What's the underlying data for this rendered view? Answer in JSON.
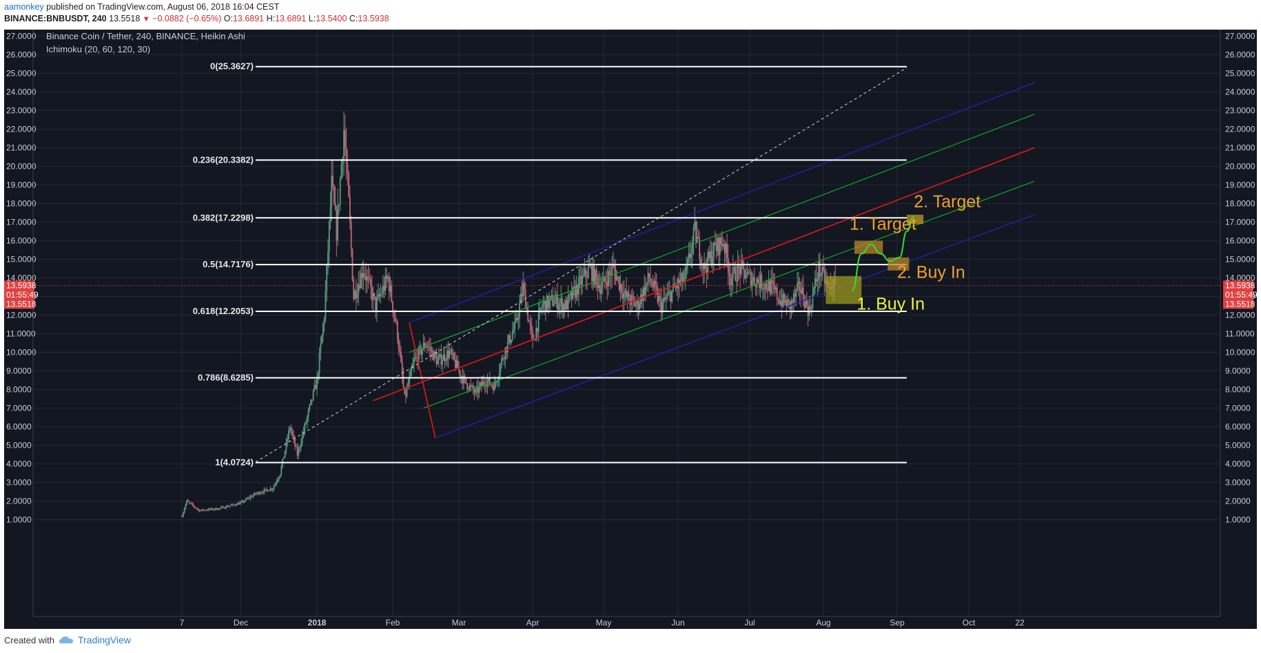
{
  "header": {
    "author": "aamonkey",
    "published_text": "published on TradingView.com, August 06, 2018 16:04 CEST",
    "symbol": "BINANCE:BNBUSDT, 240",
    "last": "13.5518",
    "change_arrow": "▼",
    "change": "−0.0882 (−0.65%)",
    "o_label": "O:",
    "o_value": "13.6891",
    "h_label": "H:",
    "h_value": "13.6891",
    "l_label": "L:",
    "l_value": "13.5400",
    "c_label": "C:",
    "c_value": "13.5938"
  },
  "footer": {
    "created_with": "Created with",
    "brand": "TradingView"
  },
  "chart_data": {
    "type": "candlestick",
    "title": "Binance Coin / Tether, 240, BINANCE, Heikin Ashi",
    "indicator": "Ichimoku (20, 60, 120, 30)",
    "y_range": [
      1,
      27
    ],
    "y_ticks": [
      "27.0000",
      "26.0000",
      "25.0000",
      "24.0000",
      "23.0000",
      "22.0000",
      "21.0000",
      "20.0000",
      "19.0000",
      "18.0000",
      "17.0000",
      "16.0000",
      "15.0000",
      "14.0000",
      "13.0000",
      "12.0000",
      "11.0000",
      "10.0000",
      "9.0000",
      "8.0000",
      "7.0000",
      "6.0000",
      "5.0000",
      "4.0000",
      "3.0000",
      "2.0000",
      "1.0000"
    ],
    "x_ticks": [
      "7",
      "Dec",
      "2018",
      "Feb",
      "Mar",
      "Apr",
      "May",
      "Jun",
      "Jul",
      "Aug",
      "Sep",
      "Oct",
      "22"
    ],
    "price_badges": [
      {
        "label": "13.5938",
        "value": 13.5938
      },
      {
        "label": "01:55:49",
        "value": 13.1
      },
      {
        "label": "13.5518",
        "value": 12.6
      }
    ],
    "fib_levels": [
      {
        "label": "0(25.3627)",
        "value": 25.3627
      },
      {
        "label": "0.236(20.3382)",
        "value": 20.3382
      },
      {
        "label": "0.382(17.2298)",
        "value": 17.2298
      },
      {
        "label": "0.5(14.7176)",
        "value": 14.7176
      },
      {
        "label": "0.618(12.2053)",
        "value": 12.2053
      },
      {
        "label": "0.786(8.6285)",
        "value": 8.6285
      },
      {
        "label": "1(4.0724)",
        "value": 4.0724
      }
    ],
    "price_path": [
      [
        "2017-11-07",
        1.2
      ],
      [
        "2017-11-09",
        2.0
      ],
      [
        "2017-11-14",
        1.5
      ],
      [
        "2017-11-22",
        1.6
      ],
      [
        "2017-12-01",
        1.9
      ],
      [
        "2017-12-07",
        2.4
      ],
      [
        "2017-12-14",
        2.7
      ],
      [
        "2017-12-17",
        3.5
      ],
      [
        "2017-12-21",
        6.0
      ],
      [
        "2017-12-24",
        4.5
      ],
      [
        "2017-12-28",
        6.5
      ],
      [
        "2018-01-01",
        8.5
      ],
      [
        "2018-01-04",
        12.0
      ],
      [
        "2018-01-07",
        19.0
      ],
      [
        "2018-01-09",
        16.5
      ],
      [
        "2018-01-12",
        22.0
      ],
      [
        "2018-01-14",
        18.0
      ],
      [
        "2018-01-16",
        13.0
      ],
      [
        "2018-01-20",
        14.5
      ],
      [
        "2018-01-25",
        12.5
      ],
      [
        "2018-01-30",
        14.0
      ],
      [
        "2018-02-03",
        11.0
      ],
      [
        "2018-02-06",
        7.5
      ],
      [
        "2018-02-10",
        9.5
      ],
      [
        "2018-02-15",
        10.5
      ],
      [
        "2018-02-20",
        9.5
      ],
      [
        "2018-02-25",
        10.0
      ],
      [
        "2018-03-03",
        8.5
      ],
      [
        "2018-03-08",
        7.8
      ],
      [
        "2018-03-12",
        8.5
      ],
      [
        "2018-03-16",
        8.2
      ],
      [
        "2018-03-20",
        10.0
      ],
      [
        "2018-03-25",
        11.5
      ],
      [
        "2018-03-28",
        13.5
      ],
      [
        "2018-04-01",
        10.5
      ],
      [
        "2018-04-05",
        12.5
      ],
      [
        "2018-04-10",
        12.8
      ],
      [
        "2018-04-15",
        12.5
      ],
      [
        "2018-04-20",
        13.5
      ],
      [
        "2018-04-25",
        14.5
      ],
      [
        "2018-04-30",
        13.5
      ],
      [
        "2018-05-05",
        14.5
      ],
      [
        "2018-05-10",
        13.0
      ],
      [
        "2018-05-15",
        12.5
      ],
      [
        "2018-05-20",
        14.0
      ],
      [
        "2018-05-25",
        12.5
      ],
      [
        "2018-05-31",
        13.5
      ],
      [
        "2018-06-04",
        14.0
      ],
      [
        "2018-06-08",
        16.5
      ],
      [
        "2018-06-12",
        14.5
      ],
      [
        "2018-06-16",
        15.5
      ],
      [
        "2018-06-20",
        16.0
      ],
      [
        "2018-06-23",
        14.0
      ],
      [
        "2018-06-27",
        14.5
      ],
      [
        "2018-07-01",
        14.0
      ],
      [
        "2018-07-05",
        13.8
      ],
      [
        "2018-07-10",
        13.5
      ],
      [
        "2018-07-14",
        12.8
      ],
      [
        "2018-07-18",
        12.5
      ],
      [
        "2018-07-22",
        13.5
      ],
      [
        "2018-07-26",
        12.2
      ],
      [
        "2018-07-30",
        14.5
      ],
      [
        "2018-08-03",
        13.5
      ],
      [
        "2018-08-06",
        13.6
      ]
    ],
    "channels": {
      "red_mid": [
        [
          "2018-01-24",
          7.4
        ],
        [
          "2018-10-28",
          21.0
        ]
      ],
      "blue_top": [
        [
          "2018-02-08",
          11.6
        ],
        [
          "2018-10-28",
          24.5
        ]
      ],
      "blue_bottom": [
        [
          "2018-02-19",
          5.4
        ],
        [
          "2018-10-28",
          17.4
        ]
      ],
      "green_top": [
        [
          "2018-02-08",
          10.0
        ],
        [
          "2018-10-28",
          22.8
        ]
      ],
      "green_bottom": [
        [
          "2018-02-14",
          7.0
        ],
        [
          "2018-10-28",
          19.2
        ]
      ],
      "dashed_trend": [
        [
          "2017-12-07",
          4.1
        ],
        [
          "2018-09-05",
          25.3
        ]
      ]
    },
    "zones": [
      {
        "name": "1-buy-in",
        "x0": "2018-08-02",
        "x1": "2018-08-17",
        "y0": 12.6,
        "y1": 14.1,
        "color": "#9c9a1e"
      },
      {
        "name": "1-target",
        "x0": "2018-08-14",
        "x1": "2018-08-26",
        "y0": 15.3,
        "y1": 16.0,
        "color": "#b8862a"
      },
      {
        "name": "2-buy-in",
        "x0": "2018-08-28",
        "x1": "2018-09-06",
        "y0": 14.4,
        "y1": 15.1,
        "color": "#b8862a"
      },
      {
        "name": "2-target",
        "x0": "2018-09-05",
        "x1": "2018-09-12",
        "y0": 16.9,
        "y1": 17.4,
        "color": "#c09a22"
      }
    ],
    "forecast_path": [
      [
        "2018-08-13",
        13.3
      ],
      [
        "2018-08-17",
        15.3
      ],
      [
        "2018-08-21",
        15.8
      ],
      [
        "2018-08-25",
        15.3
      ],
      [
        "2018-08-29",
        14.9
      ],
      [
        "2018-09-02",
        15.1
      ],
      [
        "2018-09-05",
        16.5
      ],
      [
        "2018-09-08",
        17.3
      ]
    ],
    "annotations": [
      {
        "text": "1. Target",
        "value": 16.6,
        "date": "2018-08-12",
        "color": "#f0a030"
      },
      {
        "text": "2. Target",
        "value": 17.8,
        "date": "2018-09-08",
        "color": "#f0a030"
      },
      {
        "text": "2. Buy In",
        "value": 14.0,
        "date": "2018-09-01",
        "color": "#f0a030"
      },
      {
        "text": "1. Buy In",
        "value": 12.3,
        "date": "2018-08-15",
        "color": "#f0f040"
      }
    ],
    "current_price": 13.5938,
    "colors": {
      "background": "#131722",
      "candle_up": "#5b9e82",
      "candle_down": "#c0697a",
      "fib_line": "#ffffff",
      "red_channel": "#d01818",
      "blue_channel": "#2020a0",
      "green_channel": "#10a020",
      "forecast": "#30e030",
      "badge": "#e04040"
    }
  }
}
